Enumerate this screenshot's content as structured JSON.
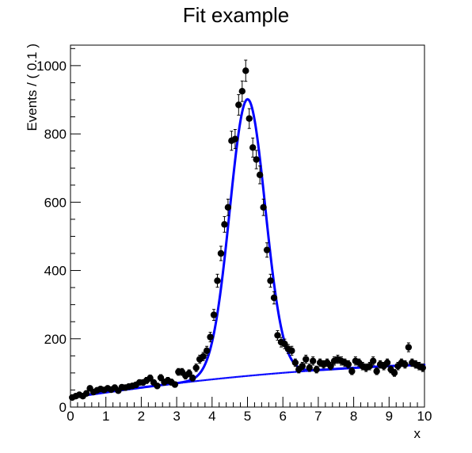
{
  "chart_data": {
    "type": "scatter",
    "title": "Fit example",
    "xlabel": "x",
    "ylabel": "Events / ( 0.1 )",
    "xlim": [
      0,
      10
    ],
    "ylim": [
      0,
      1060
    ],
    "xticks": [
      "0",
      "1",
      "2",
      "3",
      "4",
      "5",
      "6",
      "7",
      "8",
      "9",
      "10"
    ],
    "yticks": [
      "0",
      "200",
      "400",
      "600",
      "800",
      "1000"
    ],
    "grid": false,
    "legend": "none",
    "colors": {
      "data": "#000000",
      "fit": "#0000ff",
      "background": "#0000ff"
    },
    "series": [
      {
        "type": "points_with_errors",
        "x": [
          0.05,
          0.15,
          0.25,
          0.35,
          0.45,
          0.55,
          0.65,
          0.75,
          0.85,
          0.95,
          1.05,
          1.15,
          1.25,
          1.35,
          1.45,
          1.55,
          1.65,
          1.75,
          1.85,
          1.95,
          2.05,
          2.15,
          2.25,
          2.35,
          2.45,
          2.55,
          2.65,
          2.75,
          2.85,
          2.95,
          3.05,
          3.15,
          3.25,
          3.35,
          3.45,
          3.55,
          3.65,
          3.75,
          3.85,
          3.95,
          4.05,
          4.15,
          4.25,
          4.35,
          4.45,
          4.55,
          4.65,
          4.75,
          4.85,
          4.95,
          5.05,
          5.15,
          5.25,
          5.35,
          5.45,
          5.55,
          5.65,
          5.75,
          5.85,
          5.95,
          6.05,
          6.15,
          6.25,
          6.35,
          6.45,
          6.55,
          6.65,
          6.75,
          6.85,
          6.95,
          7.05,
          7.15,
          7.25,
          7.35,
          7.45,
          7.55,
          7.65,
          7.75,
          7.85,
          7.95,
          8.05,
          8.15,
          8.25,
          8.35,
          8.45,
          8.55,
          8.65,
          8.75,
          8.85,
          8.95,
          9.05,
          9.15,
          9.25,
          9.35,
          9.45,
          9.55,
          9.65,
          9.75,
          9.85,
          9.95
        ],
        "y": [
          28,
          32,
          36,
          32,
          40,
          55,
          44,
          49,
          53,
          50,
          55,
          51,
          57,
          48,
          58,
          57,
          60,
          62,
          65,
          72,
          72,
          78,
          85,
          72,
          62,
          86,
          73,
          78,
          73,
          66,
          103,
          103,
          92,
          99,
          85,
          115,
          140,
          148,
          165,
          205,
          270,
          370,
          450,
          535,
          585,
          780,
          785,
          885,
          925,
          985,
          845,
          760,
          725,
          680,
          585,
          460,
          370,
          320,
          210,
          190,
          185,
          170,
          165,
          130,
          110,
          120,
          140,
          115,
          135,
          110,
          130,
          125,
          130,
          120,
          135,
          140,
          135,
          130,
          125,
          105,
          135,
          130,
          120,
          115,
          120,
          135,
          105,
          125,
          120,
          130,
          110,
          100,
          120,
          130,
          125,
          175,
          130,
          125,
          120,
          115
        ],
        "yerr": [
          5,
          6,
          6,
          6,
          6,
          7,
          7,
          7,
          7,
          7,
          7,
          7,
          8,
          7,
          8,
          8,
          8,
          8,
          8,
          8,
          8,
          9,
          9,
          8,
          8,
          9,
          9,
          9,
          9,
          8,
          10,
          10,
          10,
          10,
          9,
          11,
          12,
          12,
          13,
          14,
          16,
          19,
          21,
          23,
          24,
          28,
          28,
          30,
          30,
          31,
          29,
          28,
          27,
          26,
          24,
          21,
          19,
          18,
          14,
          14,
          14,
          13,
          13,
          11,
          10,
          11,
          12,
          11,
          12,
          10,
          11,
          11,
          11,
          11,
          12,
          12,
          12,
          11,
          11,
          10,
          12,
          11,
          11,
          11,
          11,
          12,
          10,
          11,
          11,
          11,
          10,
          10,
          11,
          11,
          11,
          13,
          11,
          11,
          11,
          11
        ]
      },
      {
        "type": "fit_curve",
        "components": {
          "gaussian": {
            "mean": 5.0,
            "sigma": 0.5,
            "amplitude": 810
          },
          "background": {
            "a": 28,
            "b": 0.158,
            "c": -0.0062
          }
        }
      },
      {
        "type": "background_dotted"
      }
    ]
  }
}
